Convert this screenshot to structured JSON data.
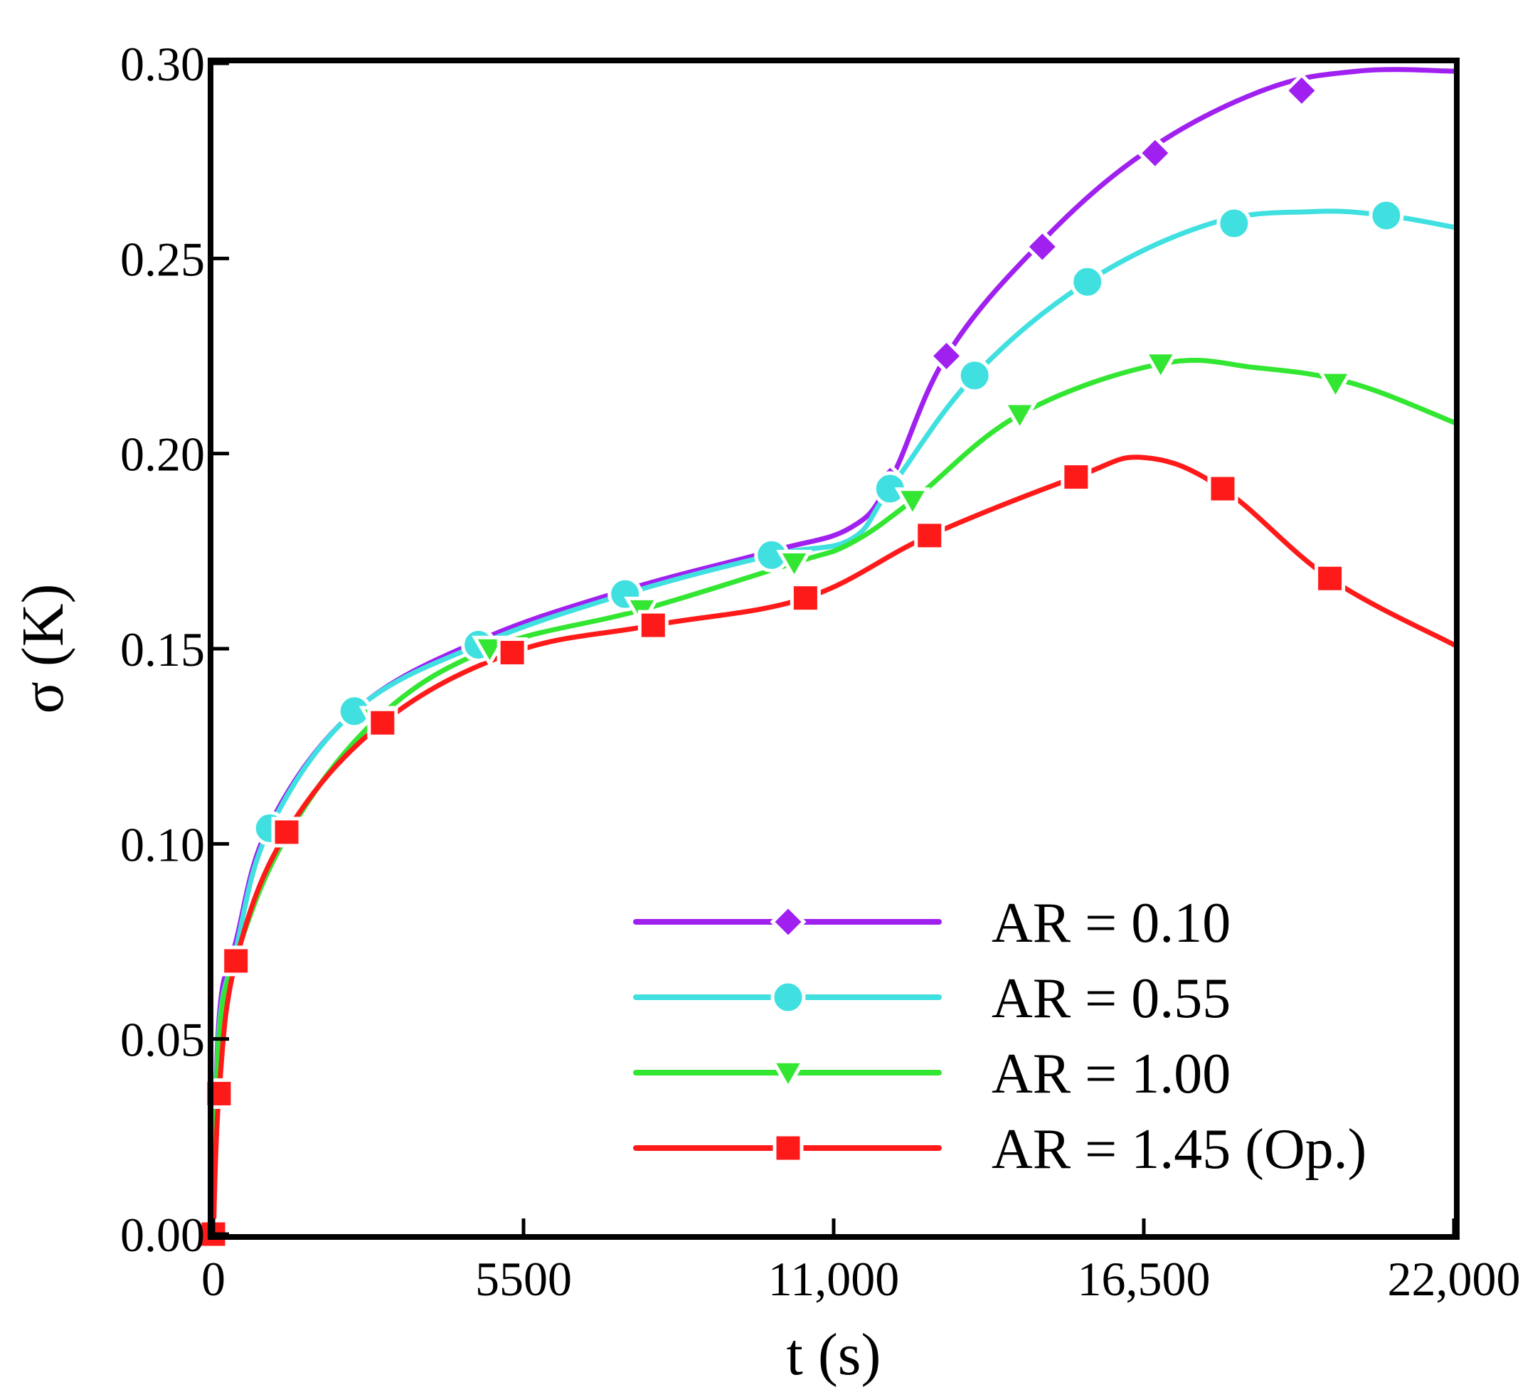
{
  "chart_data": {
    "type": "line",
    "title": "",
    "xlabel": "t (s)",
    "ylabel": "σ (K)",
    "xlim": [
      0,
      22000
    ],
    "ylim": [
      0,
      0.3
    ],
    "x_ticks": [
      0,
      5500,
      11000,
      16500,
      22000
    ],
    "x_tick_labels": [
      "0",
      "5500",
      "11,000",
      "16,500",
      "22,000"
    ],
    "y_ticks": [
      0,
      0.05,
      0.1,
      0.15,
      0.2,
      0.25,
      0.3
    ],
    "y_tick_labels": [
      "0.00",
      "0.05",
      "0.10",
      "0.15",
      "0.20",
      "0.25",
      "0.30"
    ],
    "grid": false,
    "legend_position": "bottom-right",
    "series": [
      {
        "name": "AR = 0.10",
        "color": "#a020f0",
        "marker": "diamond",
        "x": [
          0,
          100,
          400,
          1000,
          2500,
          4700,
          7300,
          9900,
          11300,
          12000,
          13000,
          14600,
          16500,
          18600,
          20300,
          22000
        ],
        "y": [
          0,
          0.055,
          0.075,
          0.105,
          0.134,
          0.152,
          0.165,
          0.175,
          0.181,
          0.193,
          0.225,
          0.253,
          0.277,
          0.293,
          0.298,
          0.298
        ],
        "marker_x": [
          2500,
          7300,
          9900,
          12000,
          13000,
          14700,
          16700,
          19300
        ],
        "marker_y": [
          0.134,
          0.165,
          0.175,
          0.193,
          0.225,
          0.253,
          0.277,
          0.293
        ]
      },
      {
        "name": "AR = 0.55",
        "color": "#40e0e0",
        "marker": "circle",
        "x": [
          0,
          100,
          400,
          1000,
          2500,
          4700,
          7300,
          9900,
          11300,
          12000,
          13500,
          15500,
          17700,
          19500,
          20800,
          22000
        ],
        "y": [
          0,
          0.052,
          0.073,
          0.104,
          0.134,
          0.151,
          0.164,
          0.174,
          0.178,
          0.191,
          0.22,
          0.244,
          0.259,
          0.262,
          0.261,
          0.258
        ],
        "marker_x": [
          1000,
          2500,
          4700,
          7300,
          9900,
          12000,
          13500,
          15500,
          18100,
          20800
        ],
        "marker_y": [
          0.104,
          0.134,
          0.151,
          0.164,
          0.174,
          0.191,
          0.22,
          0.244,
          0.259,
          0.261
        ]
      },
      {
        "name": "AR = 1.00",
        "color": "#32e632",
        "marker": "triangle-down",
        "x": [
          0,
          100,
          400,
          1300,
          2900,
          4900,
          7600,
          10300,
          11300,
          12400,
          14300,
          16800,
          18500,
          20200,
          22000
        ],
        "y": [
          0,
          0.05,
          0.071,
          0.102,
          0.132,
          0.15,
          0.16,
          0.172,
          0.177,
          0.188,
          0.21,
          0.223,
          0.222,
          0.218,
          0.208
        ],
        "marker_x": [
          2900,
          4900,
          7600,
          10300,
          12400,
          14300,
          16800,
          19900
        ],
        "marker_y": [
          0.132,
          0.15,
          0.16,
          0.172,
          0.188,
          0.21,
          0.223,
          0.218
        ]
      },
      {
        "name": "AR = 1.45 (Op.)",
        "color": "#ff1a1a",
        "marker": "square",
        "x": [
          0,
          100,
          400,
          1300,
          3000,
          5300,
          7800,
          10500,
          12700,
          15300,
          16500,
          17900,
          19800,
          22000
        ],
        "y": [
          0,
          0.036,
          0.07,
          0.103,
          0.131,
          0.149,
          0.156,
          0.163,
          0.179,
          0.194,
          0.199,
          0.191,
          0.168,
          0.151
        ],
        "marker_x": [
          0,
          100,
          400,
          1300,
          3000,
          5300,
          7800,
          10500,
          12700,
          15300,
          17900,
          19800
        ],
        "marker_y": [
          0,
          0.036,
          0.07,
          0.103,
          0.131,
          0.149,
          0.156,
          0.163,
          0.179,
          0.194,
          0.191,
          0.168
        ]
      }
    ]
  }
}
